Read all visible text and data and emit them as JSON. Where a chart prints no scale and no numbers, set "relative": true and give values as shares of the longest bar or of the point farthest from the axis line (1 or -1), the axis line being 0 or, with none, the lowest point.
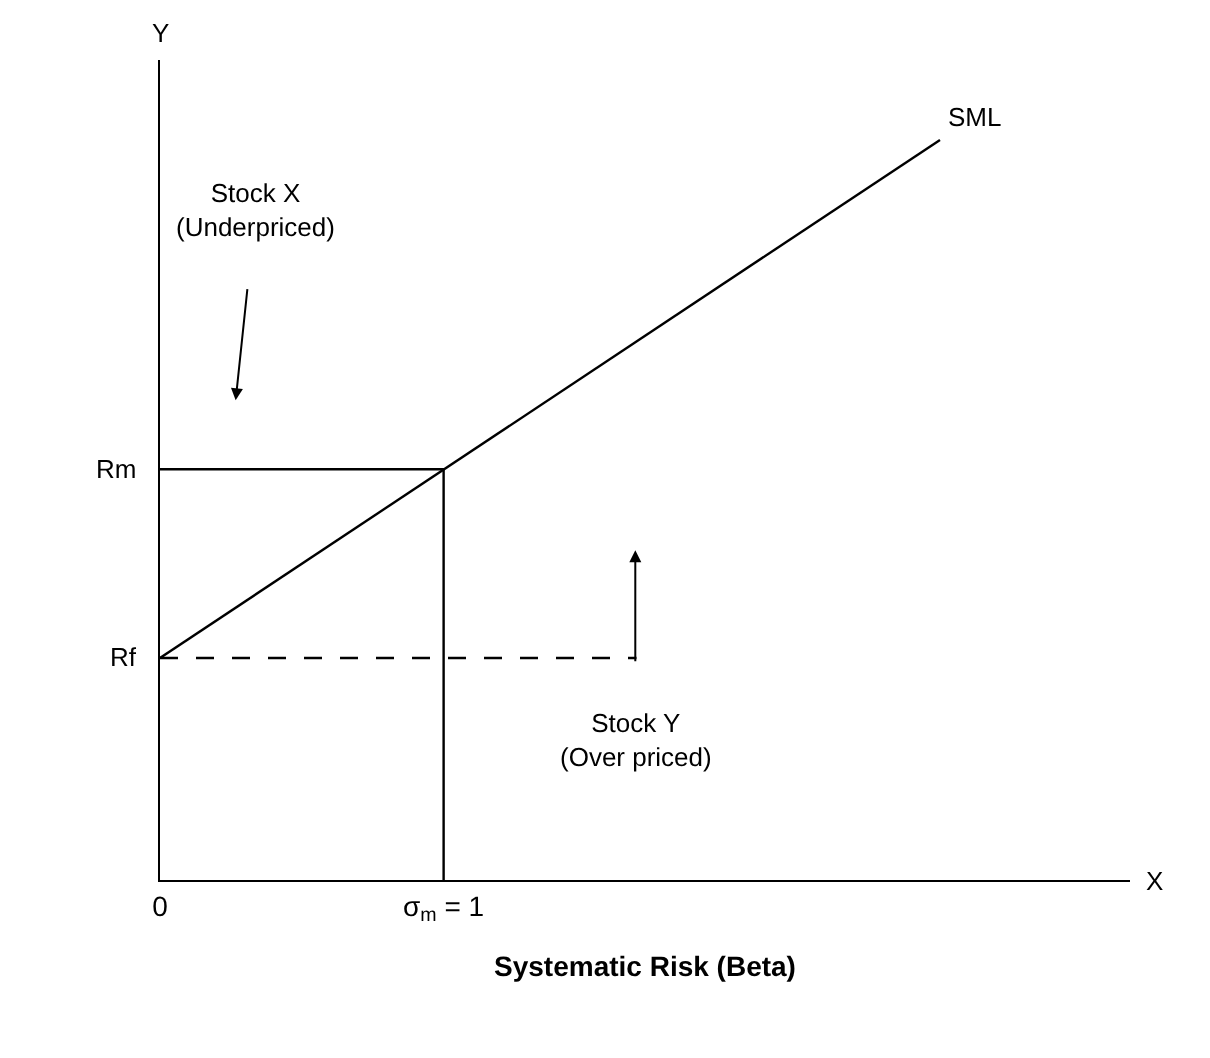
{
  "chart_data": {
    "type": "line",
    "relative": true,
    "xlabel": "Systematic Risk (Beta)",
    "xlim": [
      0,
      3.42
    ],
    "xticks": [
      0,
      {
        "value": 1,
        "label": "σ$_{m}$ = 1"
      }
    ],
    "marker": "none",
    "series": [
      {
        "color": "#000000",
        "x": [
          0,
          2.75
        ],
        "values": [
          0.3,
          1
        ],
        "line_style": "solid"
      },
      {
        "color": "#000000",
        "x": [
          0,
          1,
          1
        ],
        "values": [
          0.555,
          0.555,
          0
        ],
        "line_style": "solid"
      },
      {
        "color": "#000000",
        "x": [
          0,
          1.68
        ],
        "values": [
          0.3,
          0.3
        ],
        "line_style": "dashed"
      }
    ],
    "annotations": [
      "Rf",
      "Rm",
      "SML",
      "Stock X\n(Underpriced)",
      "Stock Y\n(Over priced)",
      "Y",
      "X"
    ]
  }
}
